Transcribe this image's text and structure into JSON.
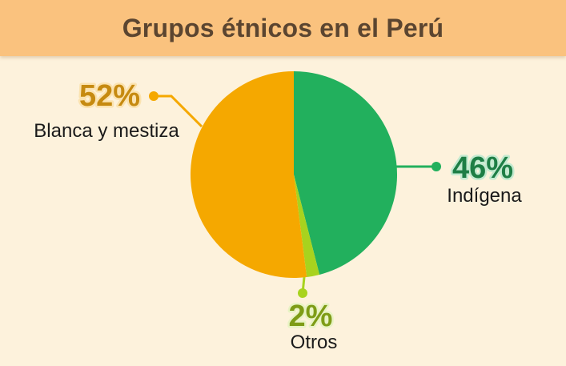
{
  "header": {
    "title": "Grupos étnicos en el Perú"
  },
  "colors": {
    "background": "#fdf2dc",
    "header": "#fac27e",
    "title": "#5b4530"
  },
  "chart_data": {
    "type": "pie",
    "title": "Grupos étnicos en el Perú",
    "slices": [
      {
        "label": "Indígena",
        "value": 46,
        "value_label": "46%",
        "color": "#22b05d",
        "label_color": "#1e7e45",
        "label_stroke": "#c4ead0"
      },
      {
        "label": "Otros",
        "value": 2,
        "value_label": "2%",
        "color": "#a8d31e",
        "label_color": "#7e9c16",
        "label_stroke": "#e8f3c4"
      },
      {
        "label": "Blanca y mestiza",
        "value": 52,
        "value_label": "52%",
        "color": "#f5a800",
        "label_color": "#c68a10",
        "label_stroke": "#fbe3b0"
      }
    ],
    "start_angle": "top, clockwise",
    "legend": "none (leader-line labels)"
  }
}
